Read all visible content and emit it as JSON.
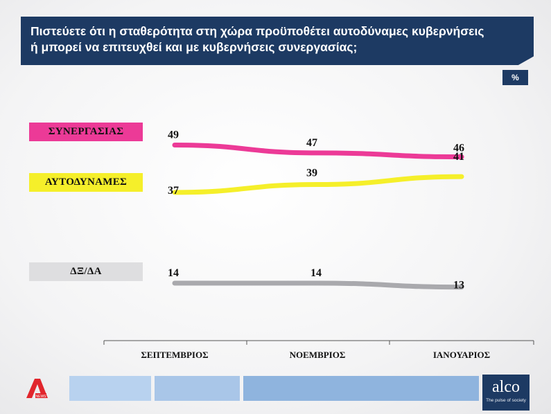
{
  "title": {
    "line1": "Πιστεύετε ότι η σταθερότητα στη χώρα προϋποθέτει αυτοδύναμες κυβερνήσεις",
    "line2": "ή μπορεί να επιτευχθεί και με κυβερνήσεις συνεργασίας;"
  },
  "unit_badge": "%",
  "chart_data": {
    "type": "line",
    "categories": [
      "ΣΕΠΤΕΜΒΡΙΟΣ",
      "ΝΟΕΜΒΡΙΟΣ",
      "ΙΑΝΟΥΑΡΙΟΣ"
    ],
    "series": [
      {
        "name": "ΣΥΝΕΡΓΑΣΙΑΣ",
        "values": [
          49,
          47,
          46
        ],
        "color": "#ec3a97",
        "label_bg": "#ec3a97"
      },
      {
        "name": "ΑΥΤΟΔΥΝΑΜΕΣ",
        "values": [
          37,
          39,
          41
        ],
        "color": "#f5ef2a",
        "label_bg": "#f5ef2a"
      },
      {
        "name": "ΔΞ/ΔΑ",
        "values": [
          14,
          14,
          13
        ],
        "color": "#a9a9ad",
        "label_bg": "#dedee0"
      }
    ],
    "grid": false,
    "legend": "left"
  },
  "branding": {
    "left_logo": "alpha-news-logo",
    "logo_small_text": "NEWS",
    "company": "alco",
    "tagline": "The pulse of society",
    "brand_color": "#1d3a63",
    "strip_color": "#a9c6e8"
  }
}
